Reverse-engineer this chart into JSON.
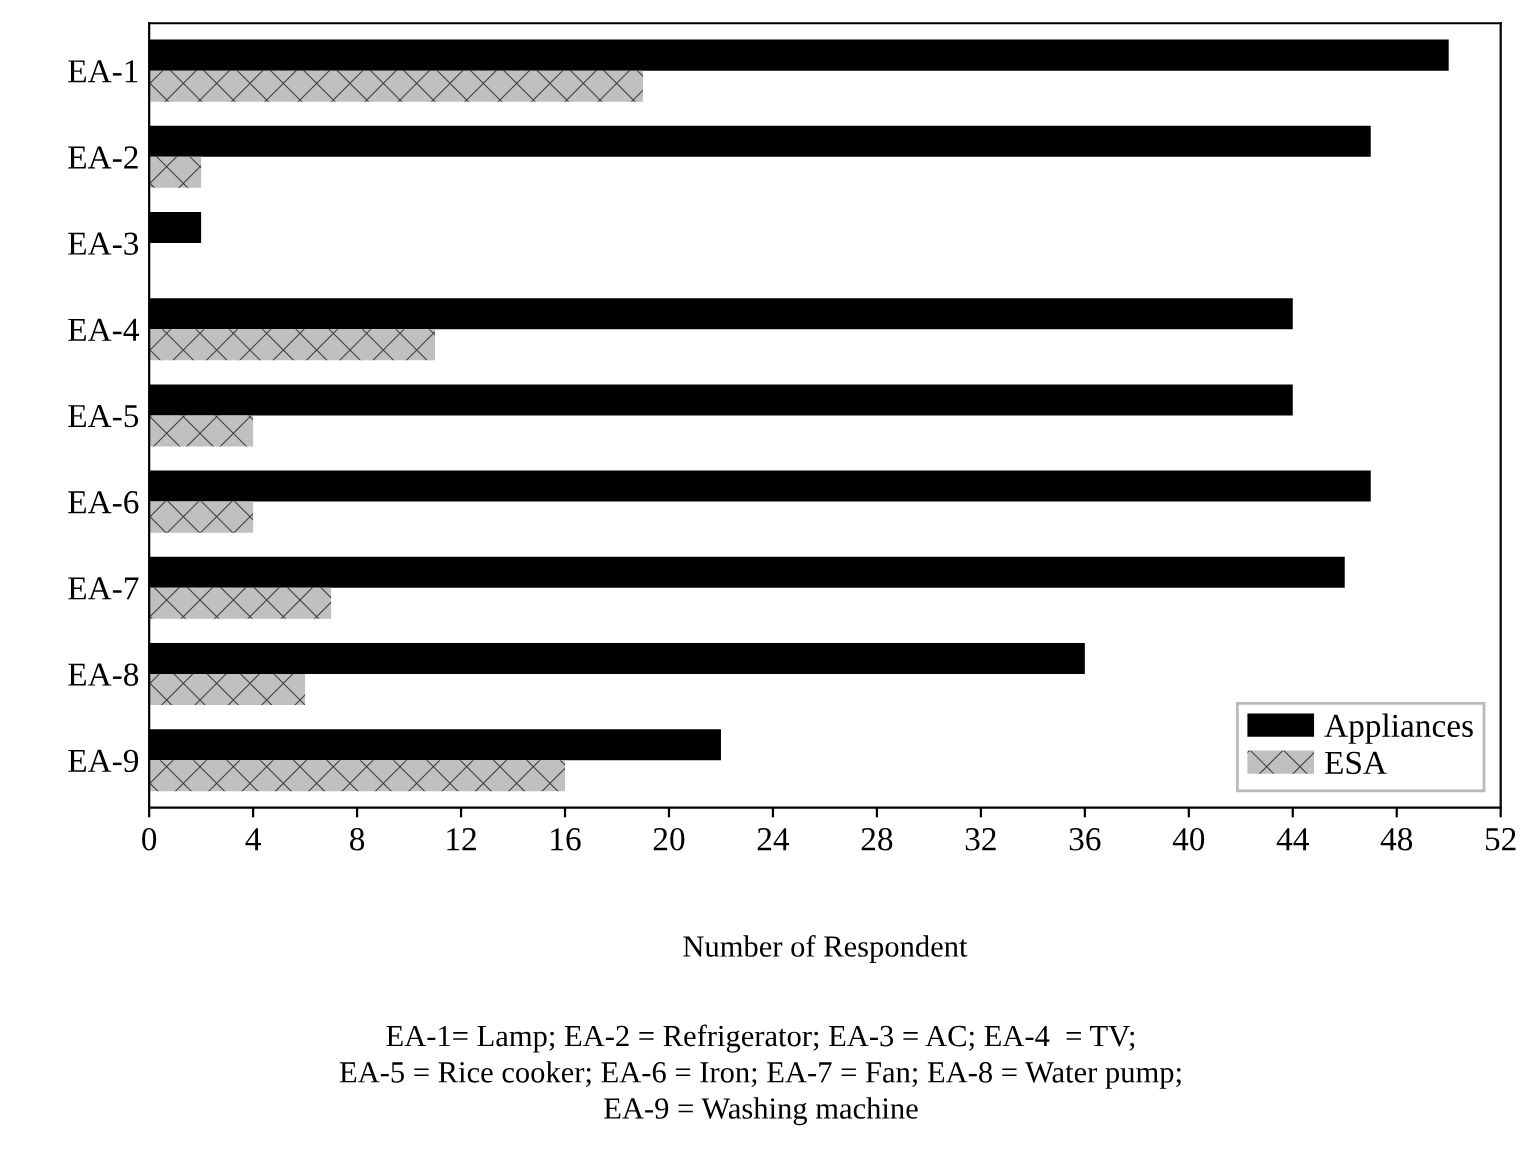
{
  "chart_data": {
    "type": "bar",
    "orientation": "horizontal",
    "xlabel": "Number of Respondent",
    "categories": [
      "EA-1",
      "EA-2",
      "EA-3",
      "EA-4",
      "EA-5",
      "EA-6",
      "EA-7",
      "EA-8",
      "EA-9"
    ],
    "series": [
      {
        "name": "Appliances",
        "color": "#000000",
        "values": [
          50,
          47,
          2,
          44,
          44,
          47,
          46,
          36,
          22
        ]
      },
      {
        "name": "ESA",
        "color": "#c0c0c0",
        "values": [
          19,
          2,
          0,
          11,
          4,
          4,
          7,
          6,
          16
        ]
      }
    ],
    "xlim": [
      0,
      52
    ],
    "xticks": [
      0,
      4,
      8,
      12,
      16,
      20,
      24,
      28,
      32,
      36,
      40,
      44,
      48,
      52
    ],
    "grid": false,
    "legend": "bottom right",
    "annotations": [
      "EA-1= Lamp; EA-2 = Refrigerator; EA-3 = AC; EA-4  = TV;\nEA-5 = Rice cooker; EA-6 = Iron; EA-7 = Fan; EA-8 = Water pump;\nEA-9 = Washing machine"
    ]
  }
}
